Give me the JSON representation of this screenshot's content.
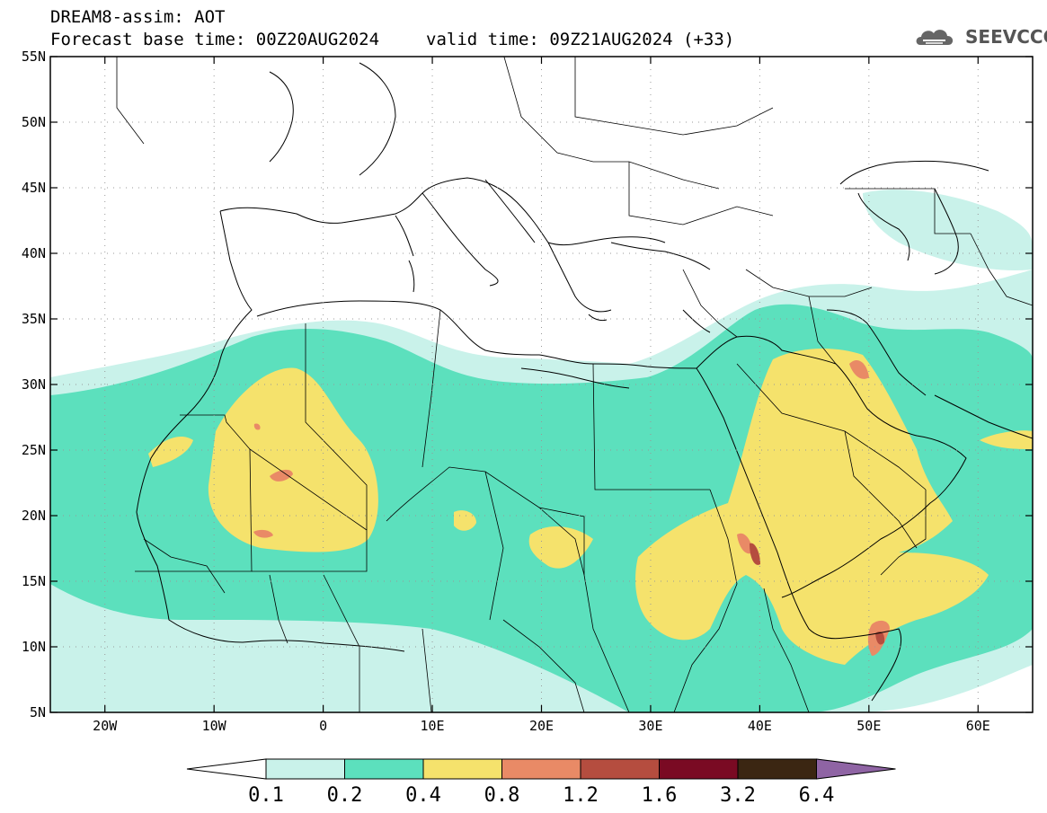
{
  "header": {
    "title": "DREAM8-assim: AOT",
    "base_time": "Forecast base time: 00Z20AUG2024",
    "valid_time": "valid time: 09Z21AUG2024 (+33)"
  },
  "logo": {
    "text": "SEEVCCC",
    "icon": "cloud-logo-icon"
  },
  "map": {
    "lon_range": [
      -25,
      65
    ],
    "lat_range": [
      5,
      55
    ],
    "lat_ticks": [
      {
        "v": 55,
        "label": "55N"
      },
      {
        "v": 50,
        "label": "50N"
      },
      {
        "v": 45,
        "label": "45N"
      },
      {
        "v": 40,
        "label": "40N"
      },
      {
        "v": 35,
        "label": "35N"
      },
      {
        "v": 30,
        "label": "30N"
      },
      {
        "v": 25,
        "label": "25N"
      },
      {
        "v": 20,
        "label": "20N"
      },
      {
        "v": 15,
        "label": "15N"
      },
      {
        "v": 10,
        "label": "10N"
      },
      {
        "v": 5,
        "label": "5N"
      }
    ],
    "lon_ticks": [
      {
        "v": -20,
        "label": "20W"
      },
      {
        "v": -10,
        "label": "10W"
      },
      {
        "v": 0,
        "label": "0"
      },
      {
        "v": 10,
        "label": "10E"
      },
      {
        "v": 20,
        "label": "20E"
      },
      {
        "v": 30,
        "label": "30E"
      },
      {
        "v": 40,
        "label": "40E"
      },
      {
        "v": 50,
        "label": "50E"
      },
      {
        "v": 60,
        "label": "60E"
      }
    ],
    "grid": "dotted",
    "colors": {
      "c01": "#c9f2ea",
      "c02": "#5ce0bd",
      "c04": "#f5e26c",
      "c08": "#e98a66",
      "c12": "#b54d3f",
      "c16": "#7a0a23",
      "c32": "#3b2612",
      "c64": "#8f64a4"
    }
  },
  "colorbar": {
    "labels": [
      "0.1",
      "0.2",
      "0.4",
      "0.8",
      "1.2",
      "1.6",
      "3.2",
      "6.4"
    ],
    "colors": [
      "#c9f2ea",
      "#5ce0bd",
      "#f5e26c",
      "#e98a66",
      "#b54d3f",
      "#7a0a23",
      "#3b2612"
    ],
    "under_color": "#ffffff",
    "over_color": "#8f64a4"
  }
}
